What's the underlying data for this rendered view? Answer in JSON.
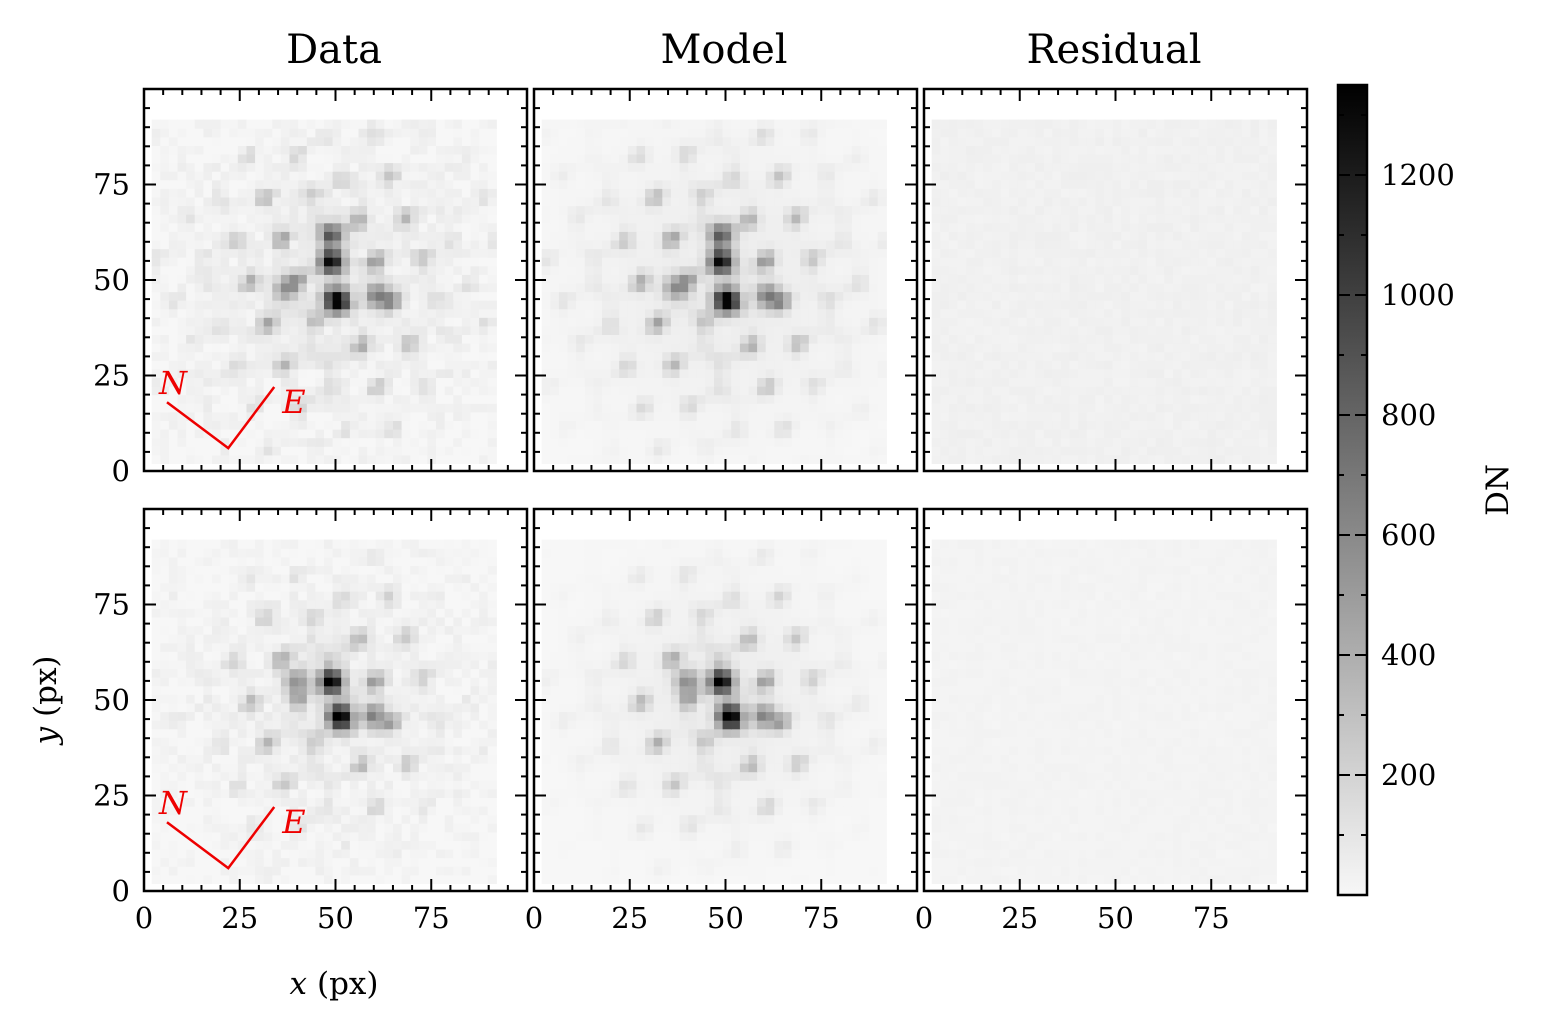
{
  "chart_data": {
    "type": "heatmap",
    "colormap": "greys",
    "colorbar": {
      "label": "DN",
      "range": [
        0,
        1350
      ],
      "ticks": [
        200,
        400,
        600,
        800,
        1000,
        1200
      ],
      "tick_labels": [
        "200",
        "400",
        "600",
        "800",
        "1000",
        "1200"
      ]
    },
    "column_titles": [
      "Data",
      "Model",
      "Residual"
    ],
    "xlabel": "x",
    "xlabel_unit": "(px)",
    "ylabel": "y",
    "ylabel_unit": "(px)",
    "xlim": [
      0,
      100
    ],
    "ylim": [
      0,
      100
    ],
    "x_ticks": [
      0,
      25,
      50,
      75
    ],
    "x_tick_labels": [
      "0",
      "25",
      "50",
      "75"
    ],
    "y_ticks": [
      0,
      25,
      50,
      75
    ],
    "y_tick_labels": [
      "0",
      "25",
      "50",
      "75"
    ],
    "compass": {
      "north_label": "N",
      "east_label": "E"
    },
    "rows": [
      {
        "name": "row-1",
        "envelope_sigma": 24,
        "peaks": [
          {
            "x": 50,
            "y": 45,
            "value": 1350
          },
          {
            "x": 49,
            "y": 55,
            "value": 1150
          },
          {
            "x": 49,
            "y": 62,
            "value": 700
          },
          {
            "x": 61,
            "y": 46,
            "value": 650
          },
          {
            "x": 37,
            "y": 48,
            "value": 520
          }
        ],
        "residual_level": 25
      },
      {
        "name": "row-2",
        "envelope_sigma": 20,
        "peaks": [
          {
            "x": 51,
            "y": 46,
            "value": 1350
          },
          {
            "x": 49,
            "y": 55,
            "value": 1250
          },
          {
            "x": 60,
            "y": 46,
            "value": 600
          },
          {
            "x": 40,
            "y": 55,
            "value": 550
          }
        ],
        "residual_level": 15
      }
    ]
  }
}
